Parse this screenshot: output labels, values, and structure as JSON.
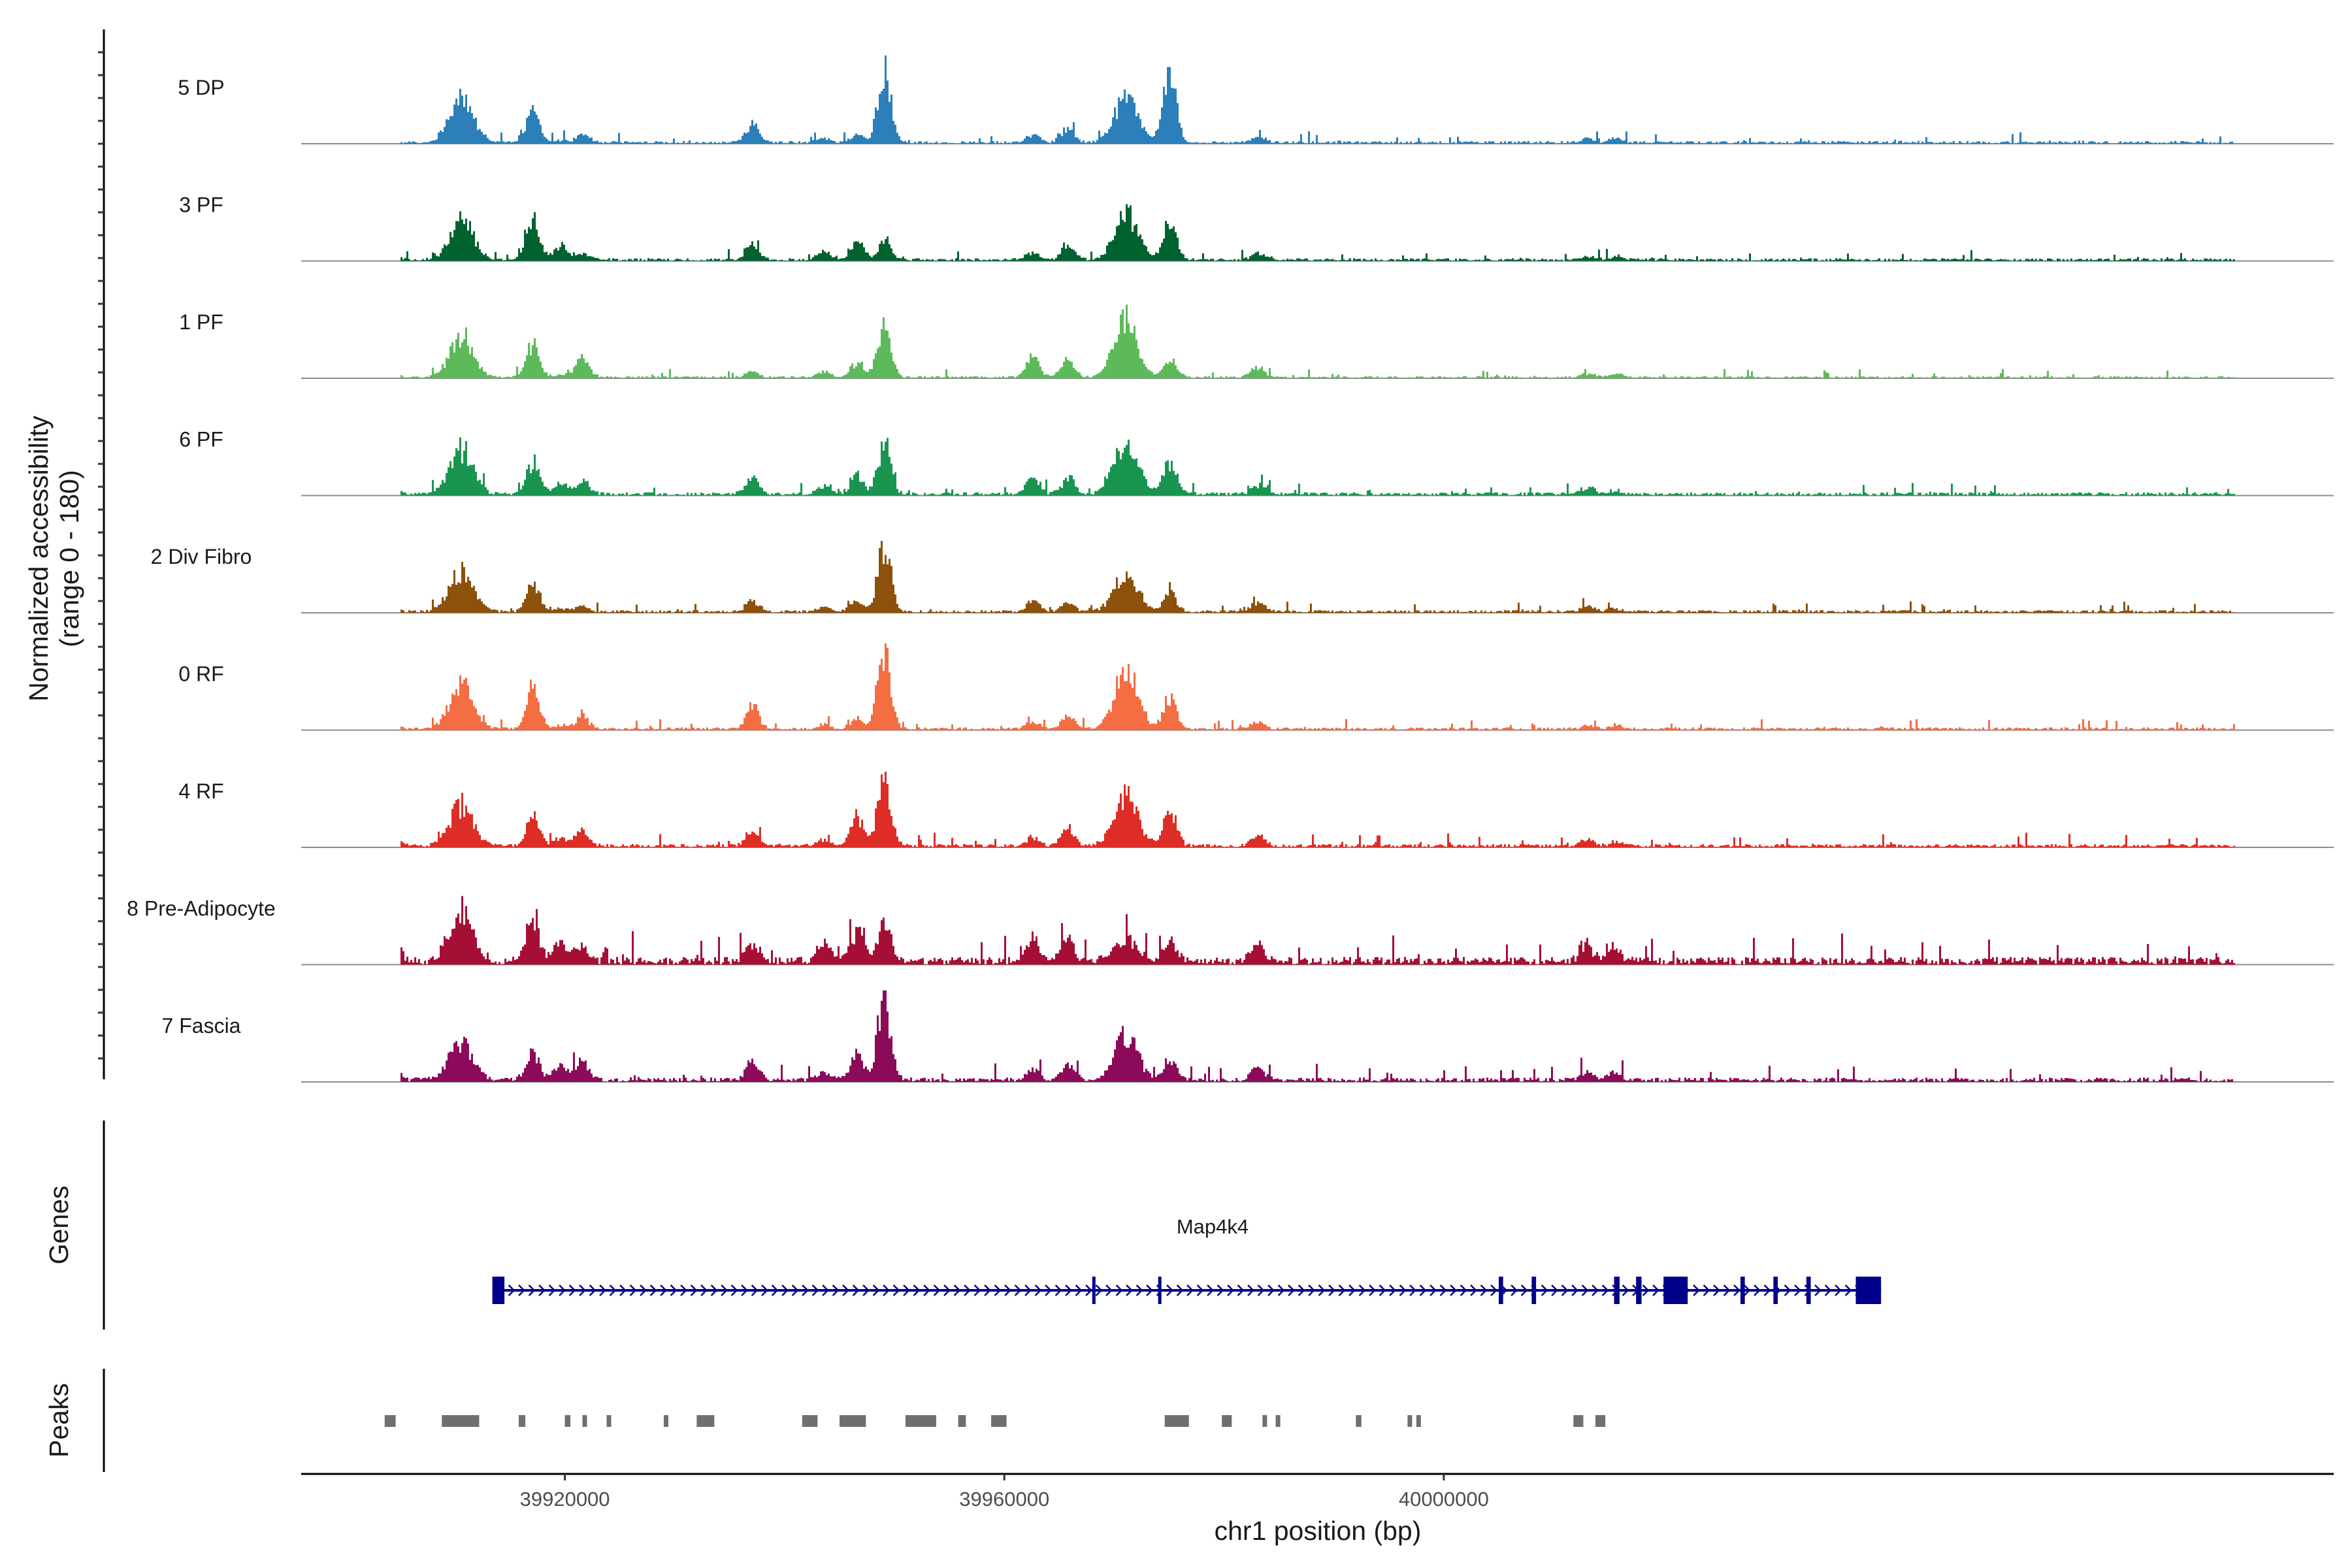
{
  "chart_data": {
    "type": "area",
    "title": "",
    "ylabel_line1": "Normalized accessibility",
    "ylabel_line2": "(range 0 - 180)",
    "xlabel": "chr1 position (bp)",
    "y_range": [
      0,
      180
    ],
    "x_range": [
      39896000,
      40081000
    ],
    "x_ticks": [
      {
        "value": 39920000,
        "label": "39920000"
      },
      {
        "value": 39960000,
        "label": "39960000"
      },
      {
        "value": 40000000,
        "label": "40000000"
      }
    ],
    "peak_centers": [
      39904000,
      39910500,
      39917000,
      39919500,
      39921500,
      39937000,
      39943500,
      39946500,
      39949000,
      39962500,
      39965700,
      39971000,
      39975000,
      39983000,
      40013000,
      40015500
    ],
    "tracks": [
      {
        "name": "5 DP",
        "color": "#2c7fb8",
        "heights": [
          0.03,
          0.62,
          0.42,
          0.03,
          0.12,
          0.25,
          0.05,
          0.1,
          1.0,
          0.1,
          0.2,
          0.62,
          1.0,
          0.08,
          0.05,
          0.05
        ],
        "noise": 0.05
      },
      {
        "name": "3 PF",
        "color": "#00622f",
        "heights": [
          0.15,
          0.55,
          0.55,
          0.2,
          0.08,
          0.2,
          0.1,
          0.28,
          0.25,
          0.1,
          0.18,
          0.62,
          0.58,
          0.1,
          0.05,
          0.05
        ],
        "noise": 0.05
      },
      {
        "name": "1 PF",
        "color": "#5dba5a",
        "heights": [
          0.1,
          0.55,
          0.45,
          0.03,
          0.3,
          0.08,
          0.08,
          0.2,
          0.73,
          0.3,
          0.25,
          0.8,
          0.23,
          0.15,
          0.05,
          0.05
        ],
        "noise": 0.04
      },
      {
        "name": "6 PF",
        "color": "#1a9550",
        "heights": [
          0.22,
          0.62,
          0.45,
          0.15,
          0.2,
          0.22,
          0.1,
          0.25,
          0.67,
          0.25,
          0.22,
          0.73,
          0.45,
          0.12,
          0.1,
          0.05
        ],
        "noise": 0.06
      },
      {
        "name": "2 Div Fibro",
        "color": "#8c510a",
        "heights": [
          0.1,
          0.55,
          0.4,
          0.05,
          0.08,
          0.15,
          0.05,
          0.15,
          0.92,
          0.15,
          0.12,
          0.48,
          0.25,
          0.12,
          0.08,
          0.05
        ],
        "noise": 0.05
      },
      {
        "name": "0 RF",
        "color": "#f46d43",
        "heights": [
          0.1,
          0.6,
          0.58,
          0.05,
          0.18,
          0.3,
          0.05,
          0.12,
          1.0,
          0.1,
          0.18,
          0.78,
          0.42,
          0.1,
          0.05,
          0.05
        ],
        "noise": 0.05
      },
      {
        "name": "4 RF",
        "color": "#de2d26",
        "heights": [
          0.2,
          0.55,
          0.42,
          0.1,
          0.2,
          0.22,
          0.08,
          0.4,
          1.0,
          0.12,
          0.25,
          0.7,
          0.5,
          0.15,
          0.1,
          0.05
        ],
        "noise": 0.06
      },
      {
        "name": "8 Pre-Adipocyte",
        "color": "#a50f36",
        "heights": [
          0.55,
          0.7,
          0.58,
          0.25,
          0.22,
          0.28,
          0.28,
          0.42,
          0.52,
          0.32,
          0.28,
          0.3,
          0.3,
          0.25,
          0.22,
          0.18
        ],
        "noise": 0.14
      },
      {
        "name": "7 Fascia",
        "color": "#8c0a5a",
        "heights": [
          0.4,
          0.52,
          0.4,
          0.2,
          0.25,
          0.25,
          0.1,
          0.35,
          1.0,
          0.15,
          0.22,
          0.63,
          0.28,
          0.18,
          0.1,
          0.1
        ],
        "noise": 0.08
      }
    ],
    "genes_panel_label": "Genes",
    "peaks_panel_label": "Peaks",
    "gene": {
      "name": "Map4k4",
      "start": 39913400,
      "end": 40039800,
      "strand": "+",
      "color": "#00008b",
      "exons": [
        [
          39913400,
          39914500
        ],
        [
          39968000,
          39968300
        ],
        [
          39974000,
          39974300
        ],
        [
          40005000,
          40005400
        ],
        [
          40008000,
          40008400
        ],
        [
          40015500,
          40016000
        ],
        [
          40017500,
          40018000
        ],
        [
          40020000,
          40022200
        ],
        [
          40027000,
          40027400
        ],
        [
          40030000,
          40030400
        ],
        [
          40033000,
          40033400
        ],
        [
          40037500,
          40039800
        ]
      ]
    },
    "peaks": [
      [
        39903600,
        39904600
      ],
      [
        39908800,
        39912200
      ],
      [
        39915800,
        39916400
      ],
      [
        39920000,
        39920500
      ],
      [
        39921600,
        39922000
      ],
      [
        39923800,
        39924100
      ],
      [
        39929000,
        39929200
      ],
      [
        39932000,
        39933600
      ],
      [
        39941600,
        39943000
      ],
      [
        39945000,
        39947400
      ],
      [
        39951000,
        39953800
      ],
      [
        39955800,
        39956500
      ],
      [
        39958800,
        39960200
      ],
      [
        39974600,
        39976800
      ],
      [
        39979800,
        39980700
      ],
      [
        39983500,
        39983900
      ],
      [
        39984700,
        39985100
      ],
      [
        39992000,
        39992500
      ],
      [
        39996700,
        39997000
      ],
      [
        39997500,
        39997800
      ],
      [
        40011800,
        40012700
      ],
      [
        40013800,
        40014700
      ]
    ]
  }
}
